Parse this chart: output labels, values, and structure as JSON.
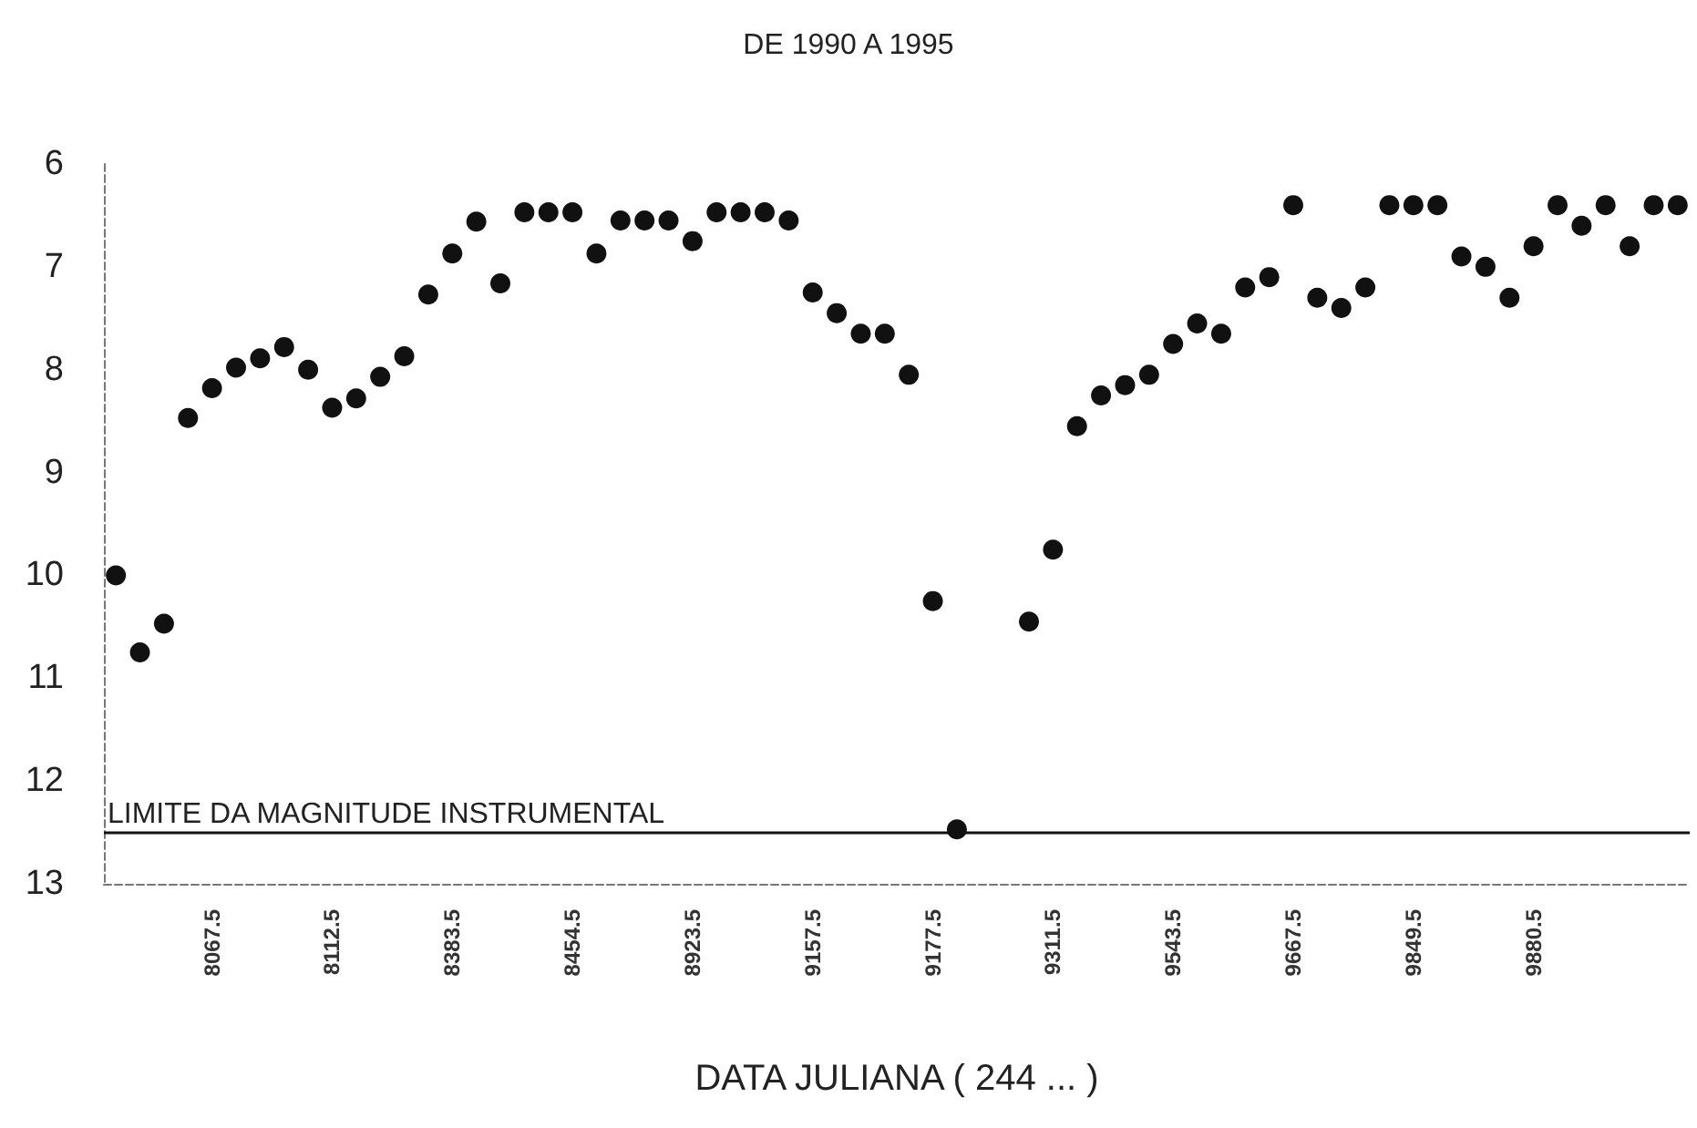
{
  "chart_data": {
    "type": "scatter",
    "title": "DE 1990 A 1995",
    "xlabel": "DATA JULIANA ( 244 ... )",
    "categories": [
      null,
      null,
      null,
      null,
      "8067.5",
      null,
      null,
      null,
      null,
      "8112.5",
      null,
      null,
      null,
      null,
      "8383.5",
      null,
      null,
      null,
      null,
      "8454.5",
      null,
      null,
      null,
      null,
      "8923.5",
      null,
      null,
      null,
      null,
      "9157.5",
      null,
      null,
      null,
      null,
      "9177.5",
      null,
      null,
      null,
      null,
      "9311.5",
      null,
      null,
      null,
      null,
      "9543.5",
      null,
      null,
      null,
      null,
      "9667.5",
      null,
      null,
      null,
      null,
      "9849.5",
      null,
      null,
      null,
      null,
      "9880.5",
      null,
      null,
      null,
      null,
      null,
      null
    ],
    "series": [
      {
        "color": "#111111",
        "values": [
          10.0,
          10.75,
          10.47,
          8.47,
          8.18,
          7.98,
          7.89,
          7.78,
          8.0,
          8.37,
          8.28,
          8.07,
          7.87,
          7.27,
          6.87,
          6.56,
          7.16,
          6.47,
          6.47,
          6.47,
          6.87,
          6.55,
          6.55,
          6.55,
          6.75,
          6.47,
          6.47,
          6.47,
          6.55,
          7.25,
          7.45,
          7.65,
          7.65,
          8.05,
          10.25,
          12.47,
          null,
          null,
          10.45,
          9.75,
          8.55,
          8.25,
          8.15,
          8.05,
          7.75,
          7.55,
          7.65,
          7.2,
          7.1,
          6.4,
          7.3,
          7.4,
          7.2,
          6.4,
          6.4,
          6.4,
          6.9,
          7.0,
          7.3,
          6.8,
          6.4,
          6.6,
          6.4,
          6.8,
          6.4,
          6.4
        ]
      }
    ],
    "ylim": [
      13,
      6
    ],
    "yticks": [
      6,
      7,
      8,
      9,
      10,
      11,
      12,
      13
    ],
    "grid": false,
    "marker": "circle",
    "ref_lines": [
      {
        "axis": "y",
        "value": 12.5,
        "label": "LIMITE DA MAGNITUDE INSTRUMENTAL",
        "color": "#111111",
        "line_style": "solid"
      }
    ]
  }
}
